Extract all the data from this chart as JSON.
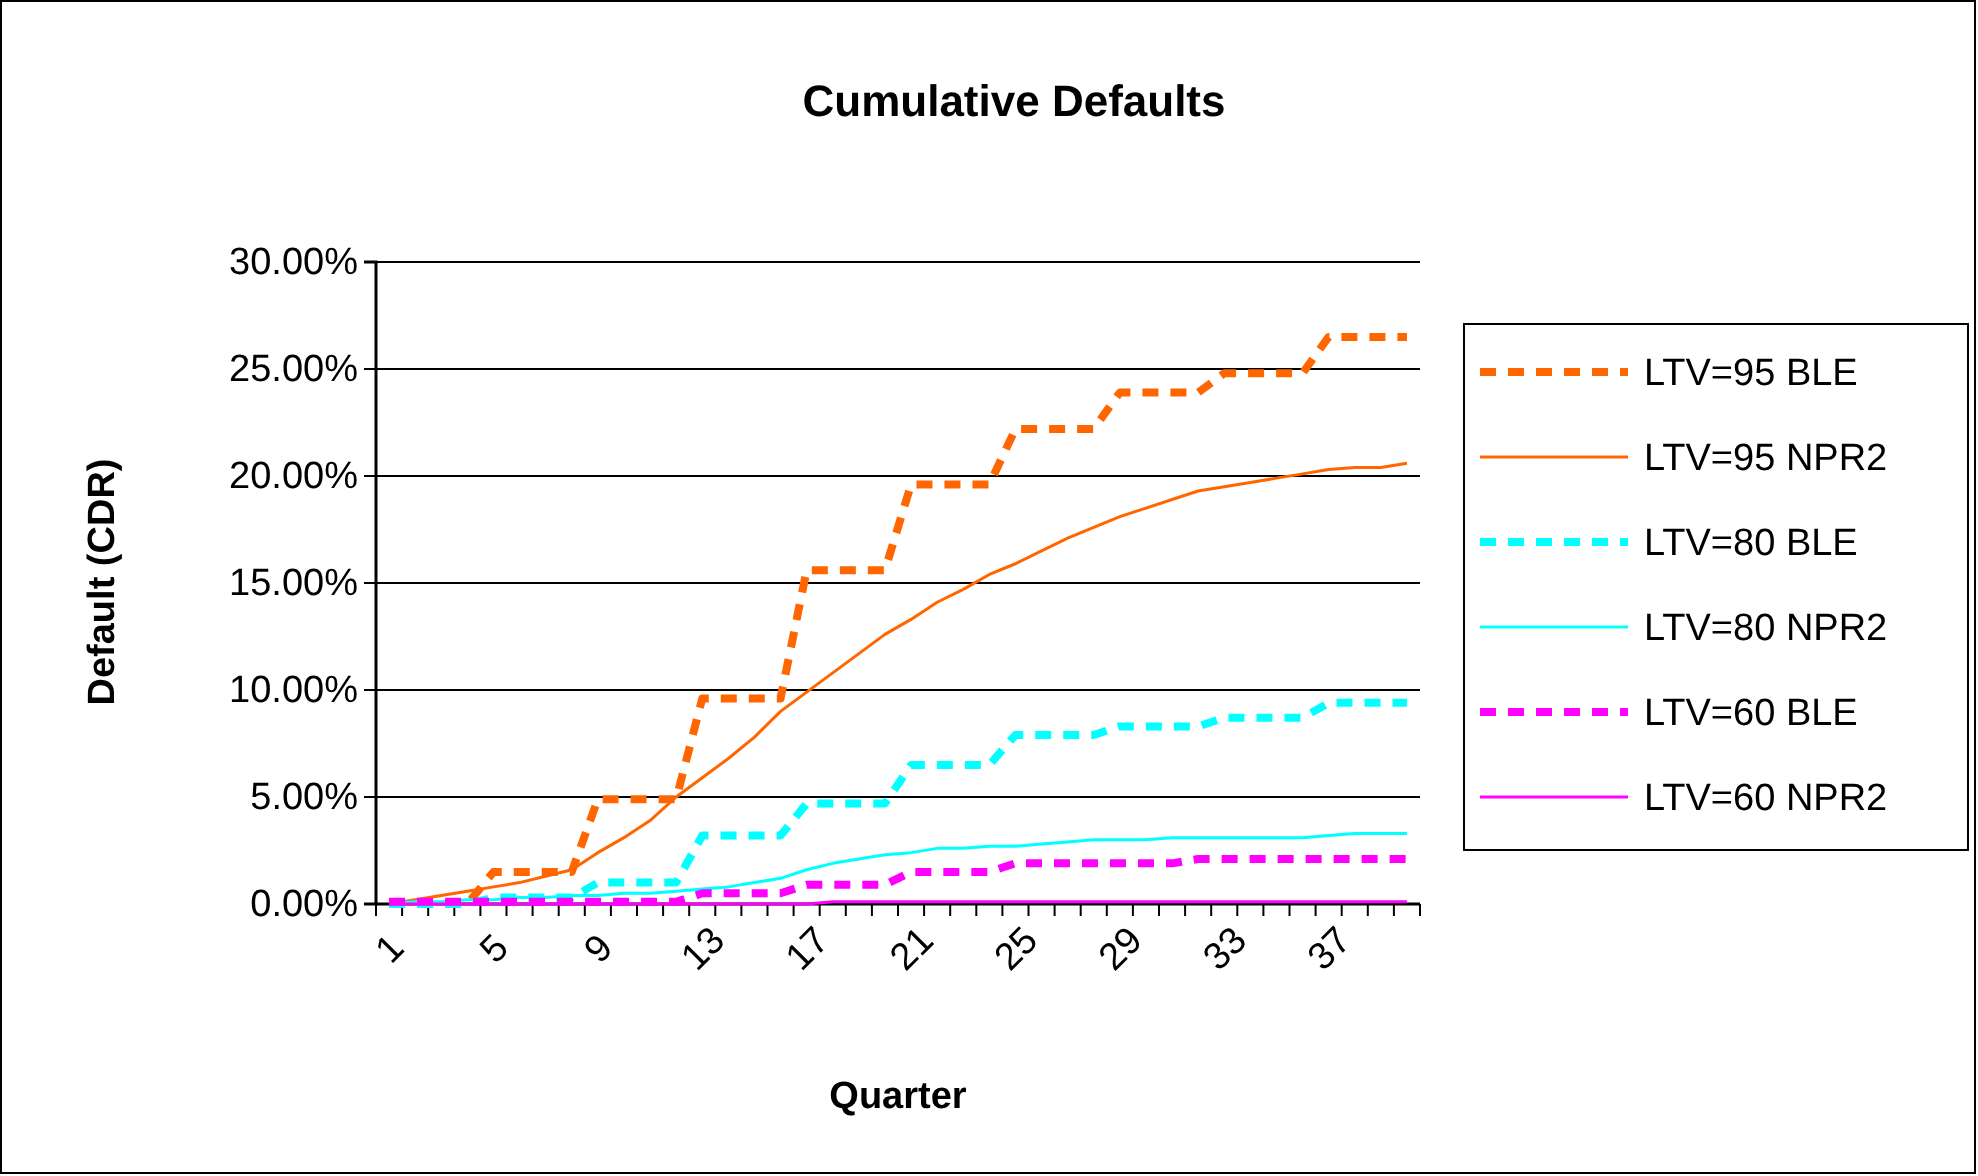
{
  "chart_data": {
    "type": "line",
    "title": "Cumulative Defaults",
    "xlabel": "Quarter",
    "ylabel": "Default (CDR)",
    "categories": [
      "1",
      null,
      null,
      null,
      "5",
      null,
      null,
      null,
      "9",
      null,
      null,
      null,
      "13",
      null,
      null,
      null,
      "17",
      null,
      null,
      null,
      "21",
      null,
      null,
      null,
      "25",
      null,
      null,
      null,
      "29",
      null,
      null,
      null,
      "33",
      null,
      null,
      null,
      "37",
      null,
      null,
      null
    ],
    "ylim": [
      0,
      30
    ],
    "yticks": [
      {
        "value": 0,
        "label": "0.00%"
      },
      {
        "value": 5,
        "label": "5.00%"
      },
      {
        "value": 10,
        "label": "10.00%"
      },
      {
        "value": 15,
        "label": "15.00%"
      },
      {
        "value": 20,
        "label": "20.00%"
      },
      {
        "value": 25,
        "label": "25.00%"
      },
      {
        "value": 30,
        "label": "30.00%"
      }
    ],
    "grid": "y",
    "legend": "right",
    "marker": "none",
    "series": [
      {
        "name": "LTV=95 BLE",
        "color": "#ff6600",
        "line_style": "dashed",
        "values": [
          0,
          0,
          0,
          0,
          1.5,
          1.5,
          1.5,
          1.5,
          4.9,
          4.9,
          4.9,
          4.9,
          9.6,
          9.6,
          9.6,
          9.6,
          15.6,
          15.6,
          15.6,
          15.6,
          19.6,
          19.6,
          19.6,
          19.6,
          22.2,
          22.2,
          22.2,
          22.2,
          23.9,
          23.9,
          23.9,
          23.9,
          24.8,
          24.8,
          24.8,
          24.8,
          26.5,
          26.5,
          26.5,
          26.5
        ]
      },
      {
        "name": "LTV=95 NPR2",
        "color": "#ff6600",
        "line_style": "solid",
        "values": [
          0,
          0.2,
          0.4,
          0.6,
          0.8,
          1.0,
          1.3,
          1.6,
          2.4,
          3.1,
          3.9,
          5.0,
          5.9,
          6.8,
          7.8,
          9.0,
          9.9,
          10.8,
          11.7,
          12.6,
          13.3,
          14.1,
          14.7,
          15.4,
          15.9,
          16.5,
          17.1,
          17.6,
          18.1,
          18.5,
          18.9,
          19.3,
          19.5,
          19.7,
          19.9,
          20.1,
          20.3,
          20.4,
          20.4,
          20.6
        ]
      },
      {
        "name": "LTV=80 BLE",
        "color": "#00ffff",
        "line_style": "dashed",
        "values": [
          0,
          0,
          0,
          0,
          0.3,
          0.3,
          0.3,
          0.3,
          1.0,
          1.0,
          1.0,
          1.0,
          3.2,
          3.2,
          3.2,
          3.2,
          4.7,
          4.7,
          4.7,
          4.7,
          6.5,
          6.5,
          6.5,
          6.5,
          7.9,
          7.9,
          7.9,
          7.9,
          8.3,
          8.3,
          8.3,
          8.3,
          8.7,
          8.7,
          8.7,
          8.7,
          9.4,
          9.4,
          9.4,
          9.4
        ]
      },
      {
        "name": "LTV=80 NPR2",
        "color": "#00ffff",
        "line_style": "solid",
        "values": [
          0,
          0.1,
          0.1,
          0.2,
          0.2,
          0.3,
          0.3,
          0.4,
          0.4,
          0.5,
          0.5,
          0.6,
          0.7,
          0.8,
          1.0,
          1.2,
          1.6,
          1.9,
          2.1,
          2.3,
          2.4,
          2.6,
          2.6,
          2.7,
          2.7,
          2.8,
          2.9,
          3.0,
          3.0,
          3.0,
          3.1,
          3.1,
          3.1,
          3.1,
          3.1,
          3.1,
          3.2,
          3.3,
          3.3,
          3.3
        ]
      },
      {
        "name": "LTV=60 BLE",
        "color": "#ff00ff",
        "line_style": "dashed",
        "values": [
          0.1,
          0.1,
          0.1,
          0.1,
          0.1,
          0.1,
          0.1,
          0.1,
          0.1,
          0.1,
          0.1,
          0.1,
          0.5,
          0.5,
          0.5,
          0.5,
          0.9,
          0.9,
          0.9,
          0.9,
          1.5,
          1.5,
          1.5,
          1.5,
          1.9,
          1.9,
          1.9,
          1.9,
          1.9,
          1.9,
          1.9,
          2.1,
          2.1,
          2.1,
          2.1,
          2.1,
          2.1,
          2.1,
          2.1,
          2.1
        ]
      },
      {
        "name": "LTV=60 NPR2",
        "color": "#ff00ff",
        "line_style": "solid",
        "values": [
          0,
          0,
          0,
          0,
          0,
          0,
          0,
          0,
          0,
          0,
          0,
          0,
          0,
          0,
          0,
          0,
          0,
          0.1,
          0.1,
          0.1,
          0.1,
          0.1,
          0.1,
          0.1,
          0.1,
          0.1,
          0.1,
          0.1,
          0.1,
          0.1,
          0.1,
          0.1,
          0.1,
          0.1,
          0.1,
          0.1,
          0.1,
          0.1,
          0.1,
          0.1
        ]
      }
    ]
  }
}
